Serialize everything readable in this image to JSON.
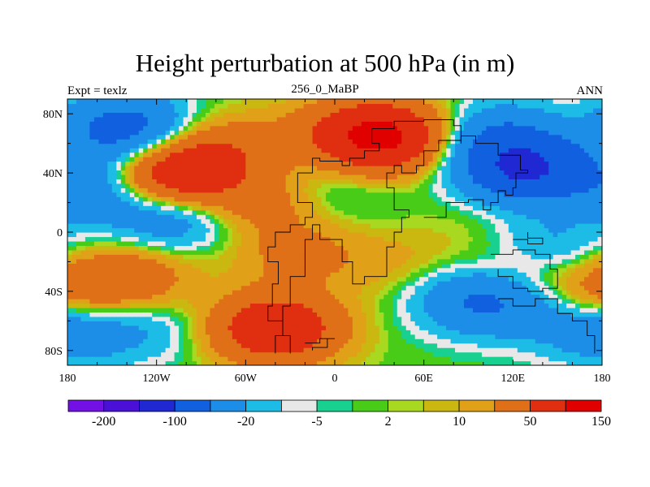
{
  "title": "Height perturbation at 500 hPa (in m)",
  "left_subtitle": "Expt = texlz",
  "center_subtitle": "256_0_MaBP",
  "right_subtitle": "ANN",
  "colors": {
    "background": "#ffffff",
    "bins": [
      "#7310e6",
      "#4a10d8",
      "#2028d4",
      "#1060e0",
      "#1c8ee8",
      "#1cbce6",
      "#e8e8e8",
      "#18d090",
      "#48cc18",
      "#a8d820",
      "#cab810",
      "#e0a018",
      "#e07018",
      "#e02e10",
      "#e00000"
    ],
    "coastline": "#000000"
  },
  "chart_data": {
    "type": "heatmap",
    "title": "Height perturbation at 500 hPa (in m)",
    "variable": "500 hPa height perturbation",
    "units": "m",
    "experiment": "texlz",
    "period": "256_0_MaBP",
    "season": "ANN",
    "x_axis": {
      "label": "",
      "range": [
        -180,
        180
      ],
      "ticks": [
        -180,
        -120,
        -60,
        0,
        60,
        120,
        180
      ],
      "tick_labels": [
        "180",
        "120W",
        "60W",
        "0",
        "60E",
        "120E",
        "180"
      ]
    },
    "y_axis": {
      "label": "",
      "range": [
        -90,
        90
      ],
      "ticks": [
        80,
        40,
        0,
        -40,
        -80
      ],
      "tick_labels": [
        "80N",
        "40N",
        "0",
        "40S",
        "80S"
      ]
    },
    "colorbar": {
      "levels": [
        -200,
        -150,
        -100,
        -50,
        -20,
        -10,
        -5,
        -2,
        2,
        5,
        10,
        20,
        50,
        100,
        150
      ],
      "labels": [
        "-200",
        "-100",
        "-20",
        "-5",
        "2",
        "10",
        "50",
        "150"
      ],
      "bins": 15
    },
    "features": [
      {
        "lon": 30,
        "lat": 65,
        "value": 120
      },
      {
        "lon": -110,
        "lat": 38,
        "value": 80
      },
      {
        "lon": -40,
        "lat": -65,
        "value": 90
      },
      {
        "lon": -80,
        "lat": 55,
        "value": 40
      },
      {
        "lon": -50,
        "lat": 20,
        "value": 30
      },
      {
        "lon": -140,
        "lat": -30,
        "value": 40
      },
      {
        "lon": 120,
        "lat": -25,
        "value": 25
      },
      {
        "lon": -25,
        "lat": -15,
        "value": 25
      },
      {
        "lon": 40,
        "lat": -20,
        "value": 12
      },
      {
        "lon": -5,
        "lat": 29,
        "value": -12
      },
      {
        "lon": -140,
        "lat": 70,
        "value": -70
      },
      {
        "lon": 128,
        "lat": 42,
        "value": -100
      },
      {
        "lon": 110,
        "lat": 65,
        "value": -45
      },
      {
        "lon": -110,
        "lat": 10,
        "value": -40
      },
      {
        "lon": -160,
        "lat": 30,
        "value": -40
      },
      {
        "lon": 140,
        "lat": -10,
        "value": -30
      },
      {
        "lon": 100,
        "lat": -45,
        "value": -60
      },
      {
        "lon": -120,
        "lat": -65,
        "value": -15
      },
      {
        "lon": -175,
        "lat": -65,
        "value": -40
      },
      {
        "lon": -20,
        "lat": 70,
        "value": 10
      },
      {
        "lon": 155,
        "lat": -55,
        "value": -20
      },
      {
        "lon": 176,
        "lat": -45,
        "value": 40
      },
      {
        "lon": 108,
        "lat": 12,
        "value": 8
      }
    ]
  }
}
